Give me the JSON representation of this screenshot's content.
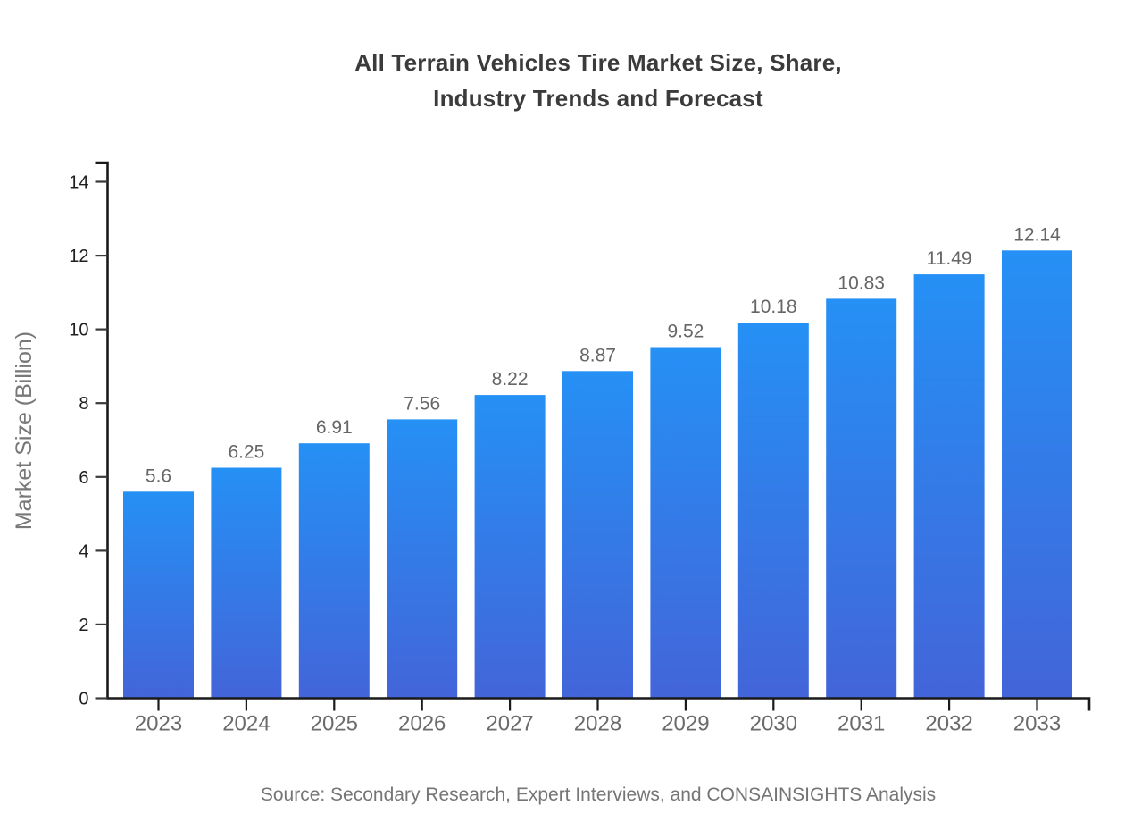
{
  "title": {
    "line1": "All Terrain Vehicles Tire Market Size, Share,",
    "line2": "Industry Trends and Forecast"
  },
  "source": "Source: Secondary Research, Expert Interviews, and CONSAINSIGHTS Analysis",
  "chart_data": {
    "type": "bar",
    "title": "All Terrain Vehicles Tire Market Size, Share, Industry Trends and Forecast",
    "categories": [
      "2023",
      "2024",
      "2025",
      "2026",
      "2027",
      "2028",
      "2029",
      "2030",
      "2031",
      "2032",
      "2033"
    ],
    "values": [
      5.6,
      6.25,
      6.91,
      7.56,
      8.22,
      8.87,
      9.52,
      10.18,
      10.83,
      11.49,
      12.14
    ],
    "value_labels": [
      "5.6",
      "6.25",
      "6.91",
      "7.56",
      "8.22",
      "8.87",
      "9.52",
      "10.18",
      "10.83",
      "11.49",
      "12.14"
    ],
    "xlabel": "",
    "ylabel": "Market Size (Billion)",
    "ylim": [
      0,
      14
    ],
    "yticks": [
      0,
      2,
      4,
      6,
      8,
      10,
      12,
      14
    ],
    "grid": false,
    "legend": false,
    "colors": {
      "bar_gradient_top": "#2590f5",
      "bar_gradient_bottom": "#4365d9",
      "axis": "#1a1a1a",
      "y_tick_label": "#1f1f1f",
      "x_tick_label": "#6b6b6b",
      "value_label": "#666666",
      "ylabel_text": "#787878",
      "title_text": "#3b3b3b",
      "source_text": "#757575",
      "background": "#ffffff"
    }
  }
}
